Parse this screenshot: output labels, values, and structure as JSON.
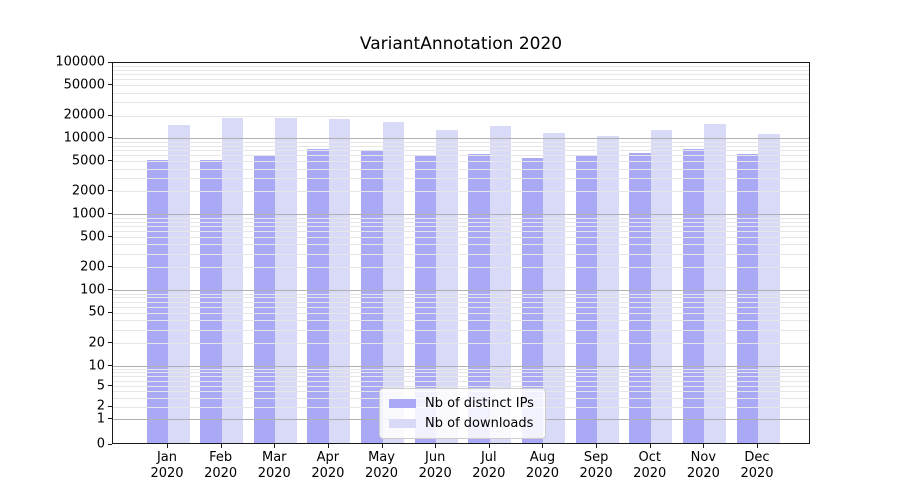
{
  "figure": {
    "background": "#ffffff"
  },
  "chart_data": {
    "type": "bar",
    "title": "VariantAnnotation 2020",
    "x_labels": [
      {
        "month": "Jan",
        "year": "2020"
      },
      {
        "month": "Feb",
        "year": "2020"
      },
      {
        "month": "Mar",
        "year": "2020"
      },
      {
        "month": "Apr",
        "year": "2020"
      },
      {
        "month": "May",
        "year": "2020"
      },
      {
        "month": "Jun",
        "year": "2020"
      },
      {
        "month": "Jul",
        "year": "2020"
      },
      {
        "month": "Aug",
        "year": "2020"
      },
      {
        "month": "Sep",
        "year": "2020"
      },
      {
        "month": "Oct",
        "year": "2020"
      },
      {
        "month": "Nov",
        "year": "2020"
      },
      {
        "month": "Dec",
        "year": "2020"
      }
    ],
    "series": [
      {
        "name": "Nb of distinct IPs",
        "color": "#a9a9f5",
        "values": [
          4900,
          4900,
          5600,
          6900,
          6500,
          5800,
          5900,
          5200,
          5700,
          6200,
          6900,
          5900
        ]
      },
      {
        "name": "Nb of downloads",
        "color": "#d9d9f8",
        "values": [
          14400,
          17600,
          18000,
          17100,
          15900,
          12400,
          14100,
          11400,
          10400,
          12400,
          14700,
          10800
        ]
      }
    ],
    "y_scale": "symlog",
    "ylim": [
      0,
      100000
    ],
    "y_ticks": [
      "0",
      "1",
      "2",
      "5",
      "10",
      "20",
      "50",
      "100",
      "200",
      "500",
      "1000",
      "2000",
      "5000",
      "10000",
      "20000",
      "50000",
      "100000"
    ],
    "grid": true,
    "legend_position": "lower center"
  }
}
